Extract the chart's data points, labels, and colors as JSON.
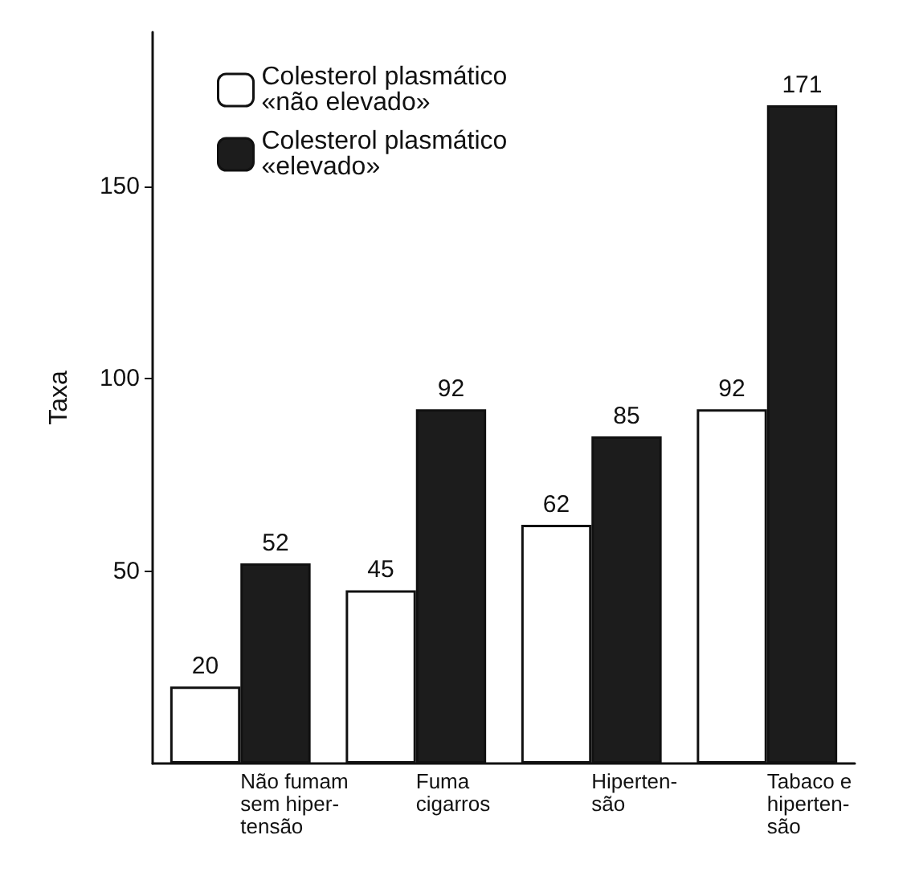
{
  "chart_data": {
    "type": "bar",
    "ylabel": "Taxa",
    "categories": [
      "Não fumam\nsem hiper-\ntensão",
      "Fuma\ncigarros",
      "Hiperten-\nsão",
      "Tabaco e\nhiperten-\nsão"
    ],
    "series": [
      {
        "name": "Colesterol plasmático\n«não elevado»",
        "color": "#ffffff",
        "values": [
          20,
          45,
          62,
          92
        ]
      },
      {
        "name": "Colesterol plasmático\n«elevado»",
        "color": "#1c1c1c",
        "values": [
          52,
          92,
          85,
          171
        ]
      }
    ],
    "ylim": [
      0,
      190
    ],
    "yticks": [
      50,
      100,
      150
    ],
    "data_labels": true,
    "grid": false,
    "legend": "top left"
  }
}
